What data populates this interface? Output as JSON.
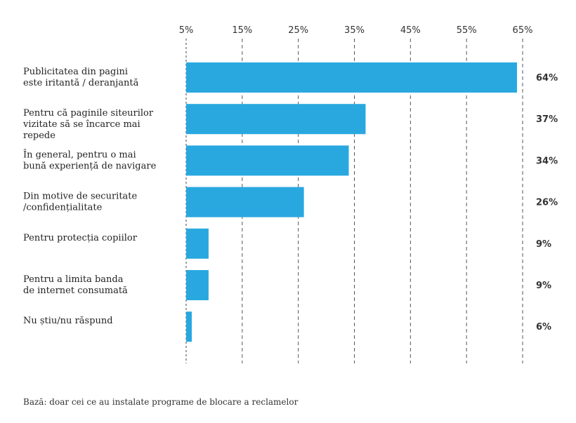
{
  "chart_data": {
    "type": "bar",
    "orientation": "horizontal",
    "categories": [
      [
        "Publicitatea din pagini",
        "este iritantă / deranjantă"
      ],
      [
        "Pentru că paginile siteurilor",
        "vizitate să se încarce mai",
        "repede"
      ],
      [
        "În general, pentru o mai",
        "bună experiență de navigare"
      ],
      [
        "Din motive de securitate",
        "/confidențialitate"
      ],
      [
        "Pentru protecția copiilor"
      ],
      [
        "Pentru a limita banda",
        "de internet consumată"
      ],
      [
        "Nu știu/nu răspund"
      ]
    ],
    "values": [
      64,
      37,
      34,
      26,
      9,
      9,
      6
    ],
    "value_labels": [
      "64%",
      "37%",
      "34%",
      "26%",
      "9%",
      "9%",
      "6%"
    ],
    "xticks": [
      5,
      15,
      25,
      35,
      45,
      55,
      65
    ],
    "xtick_labels": [
      "5%",
      "15%",
      "25%",
      "35%",
      "45%",
      "55%",
      "65%"
    ],
    "xlim": [
      5,
      65
    ],
    "bar_color": "#29a8e0",
    "xaxis_position": "top",
    "grid": true
  },
  "footnote": "Bază: doar cei ce au instalate programe de blocare a reclamelor"
}
